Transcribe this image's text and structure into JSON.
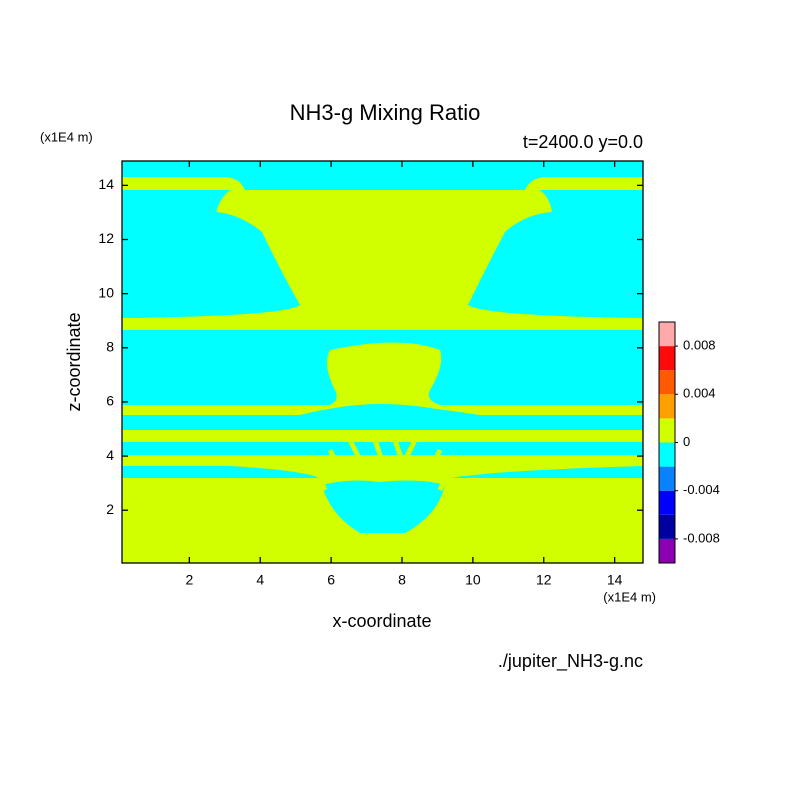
{
  "chart_data": {
    "type": "contourf",
    "title": "NH3-g Mixing Ratio",
    "subtitle": "t=2400.0 y=0.0",
    "x_label": "x-coordinate",
    "y_label": "z-coordinate",
    "x_unit": "(x1E4 m)",
    "y_unit": "(x1E4 m)",
    "source": "./jupiter_NH3-g.nc",
    "xlim": [
      0.1,
      14.8
    ],
    "xticks": [
      2,
      4,
      6,
      8,
      10,
      12,
      14
    ],
    "ylim": [
      0.05,
      14.9
    ],
    "yticks": [
      2,
      4,
      6,
      8,
      10,
      12,
      14
    ],
    "colorbar": {
      "levels": [
        -0.01,
        -0.008,
        -0.006,
        -0.004,
        -0.002,
        0,
        0.002,
        0.004,
        0.006,
        0.008,
        0.01
      ],
      "colors": [
        "#8c00b4",
        "#0000a0",
        "#0000ff",
        "#0a82ff",
        "#00ffff",
        "#d2ff00",
        "#ffa000",
        "#ff5a00",
        "#ff0a0a",
        "#ffaaaa"
      ],
      "ticks": [
        -0.008,
        -0.004,
        0,
        0.004,
        0.008
      ]
    }
  }
}
